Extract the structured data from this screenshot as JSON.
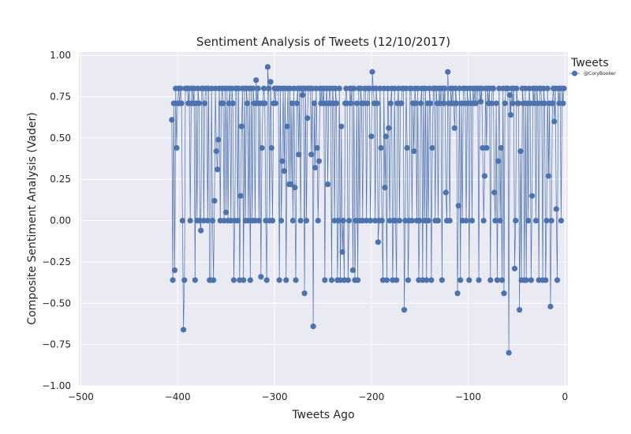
{
  "chart_data": {
    "type": "line",
    "title": "Sentiment Analysis of Tweets (12/10/2017)",
    "xlabel": "Tweets Ago",
    "ylabel": "Composite Sentiment Analysis (Vader)",
    "xlim": [
      -502,
      3
    ],
    "ylim": [
      -1.0,
      1.02
    ],
    "xticks": [
      -500,
      -400,
      -300,
      -200,
      -100,
      0
    ],
    "xtick_labels": [
      "−500",
      "−400",
      "−300",
      "−200",
      "−100",
      "0"
    ],
    "yticks": [
      1.0,
      0.75,
      0.5,
      0.25,
      0.0,
      -0.25,
      -0.5,
      -0.75,
      -1.0
    ],
    "ytick_labels": [
      "1.00",
      "0.75",
      "0.50",
      "0.25",
      "0.00",
      "−0.25",
      "−0.50",
      "−0.75",
      "−1.00"
    ],
    "grid": true,
    "legend": {
      "title": "Tweets",
      "placement": "outside-top-right"
    },
    "series": [
      {
        "name": "@CoryBooker",
        "color": "#4c72b0",
        "marker": "circle",
        "y_values": [
          0.61,
          -0.36,
          0.71,
          -0.3,
          0.8,
          0.44,
          0.71,
          0.8,
          0.71,
          0.8,
          0.71,
          0.0,
          -0.66,
          -0.36,
          0.8,
          0.8,
          0.8,
          0.71,
          0.8,
          0.0,
          0.71,
          0.8,
          0.71,
          0.8,
          -0.36,
          0.71,
          0.0,
          0.8,
          0.71,
          0.0,
          -0.06,
          0.8,
          0.8,
          0.0,
          0.71,
          0.8,
          0.8,
          0.0,
          0.8,
          -0.36,
          -0.36,
          0.8,
          0.0,
          -0.36,
          0.12,
          0.8,
          0.42,
          0.31,
          0.49,
          0.8,
          0.0,
          0.71,
          0.8,
          0.71,
          0.0,
          0.8,
          0.05,
          0.8,
          0.0,
          0.71,
          0.8,
          0.0,
          0.8,
          0.71,
          -0.36,
          0.0,
          0.8,
          0.8,
          0.0,
          0.8,
          -0.36,
          0.15,
          0.57,
          0.8,
          -0.36,
          0.8,
          0.0,
          0.8,
          0.71,
          0.0,
          0.8,
          -0.36,
          0.8,
          0.0,
          0.8,
          0.71,
          0.0,
          0.85,
          0.71,
          0.8,
          0.0,
          0.71,
          -0.34,
          0.44,
          0.71,
          0.8,
          0.71,
          0.0,
          -0.36,
          0.93,
          0.8,
          0.0,
          0.84,
          0.44,
          0.0,
          0.71,
          0.8,
          0.71,
          0.8,
          0.8,
          0.8,
          -0.36,
          0.8,
          0.0,
          0.36,
          0.8,
          0.3,
          0.8,
          -0.36,
          0.57,
          0.8,
          0.22,
          0.8,
          0.22,
          0.71,
          0.0,
          0.8,
          0.2,
          -0.36,
          0.71,
          0.8,
          0.4,
          0.8,
          0.0,
          0.8,
          0.76,
          0.8,
          -0.44,
          0.8,
          0.0,
          0.62,
          0.8,
          0.8,
          0.8,
          0.4,
          0.8,
          -0.64,
          0.71,
          0.32,
          0.8,
          0.44,
          0.0,
          0.36,
          0.8,
          0.71,
          0.8,
          0.71,
          0.8,
          -0.36,
          0.71,
          0.8,
          0.22,
          0.71,
          0.8,
          0.71,
          -0.36,
          0.8,
          0.71,
          0.0,
          0.8,
          0.71,
          -0.36,
          0.0,
          0.8,
          -0.36,
          0.57,
          -0.19,
          0.0,
          -0.36,
          0.71,
          0.8,
          0.71,
          -0.36,
          0.0,
          0.8,
          0.71,
          0.8,
          -0.3,
          0.8,
          -0.36,
          0.0,
          0.71,
          -0.36,
          0.8,
          0.0,
          0.8,
          0.71,
          0.0,
          0.71,
          0.8,
          0.8,
          0.0,
          0.71,
          0.8,
          0.8,
          0.0,
          0.51,
          0.9,
          0.8,
          0.71,
          0.0,
          0.8,
          0.71,
          -0.13,
          0.0,
          0.8,
          0.44,
          0.0,
          -0.36,
          0.8,
          0.2,
          0.51,
          -0.36,
          0.8,
          0.56,
          0.0,
          0.71,
          0.8,
          -0.36,
          0.0,
          0.8,
          0.0,
          -0.36,
          0.71,
          0.8,
          0.0,
          0.71,
          0.71,
          0.8,
          0.8,
          -0.54,
          0.0,
          0.8,
          0.44,
          -0.36,
          0.0,
          0.8,
          0.8,
          0.0,
          0.71,
          0.42,
          0.8,
          0.71,
          0.0,
          0.8,
          -0.36,
          0.0,
          0.71,
          0.8,
          -0.36,
          0.8,
          0.0,
          0.8,
          -0.36,
          0.71,
          0.0,
          0.8,
          0.71,
          -0.36,
          0.44,
          0.8,
          0.8,
          0.0,
          0.8,
          0.71,
          0.0,
          0.8,
          0.71,
          0.8,
          -0.36,
          0.8,
          0.71,
          0.8,
          0.17,
          0.0,
          0.9,
          0.71,
          0.0,
          0.8,
          0.71,
          0.8,
          0.71,
          0.56,
          0.8,
          0.71,
          -0.44,
          0.09,
          0.8,
          -0.36,
          0.71,
          0.0,
          0.8,
          0.8,
          0.71,
          0.0,
          0.8,
          0.71,
          -0.36,
          0.8,
          0.71,
          0.0,
          0.8,
          0.71,
          0.8,
          0.71,
          0.8,
          0.8,
          -0.36,
          0.8,
          0.72,
          0.8,
          0.44,
          0.0,
          0.27,
          0.8,
          0.44,
          0.8,
          0.71,
          0.8,
          -0.36,
          0.71,
          0.8,
          0.8,
          0.17,
          0.0,
          0.71,
          -0.36,
          0.36,
          0.8,
          0.0,
          0.44,
          -0.36,
          0.8,
          -0.44,
          0.71,
          0.8,
          0.8,
          0.8,
          -0.8,
          0.76,
          0.64,
          0.8,
          0.71,
          0.8,
          -0.29,
          0.0,
          0.8,
          0.71,
          0.71,
          -0.54,
          0.42,
          -0.36,
          0.8,
          0.71,
          -0.36,
          0.8,
          -0.36,
          0.71,
          0.0,
          0.8,
          0.71,
          -0.36,
          0.15,
          0.8,
          0.71,
          0.8,
          0.0,
          0.8,
          0.71,
          -0.36,
          0.8,
          0.8,
          0.71,
          -0.36,
          0.8,
          0.71,
          -0.36,
          0.0,
          0.8,
          0.27,
          0.71,
          -0.52,
          0.0,
          0.71,
          0.8,
          0.6,
          0.8,
          0.07,
          -0.36,
          0.8,
          0.71,
          0.8,
          0.0,
          0.8,
          0.71,
          0.8
        ]
      }
    ]
  }
}
